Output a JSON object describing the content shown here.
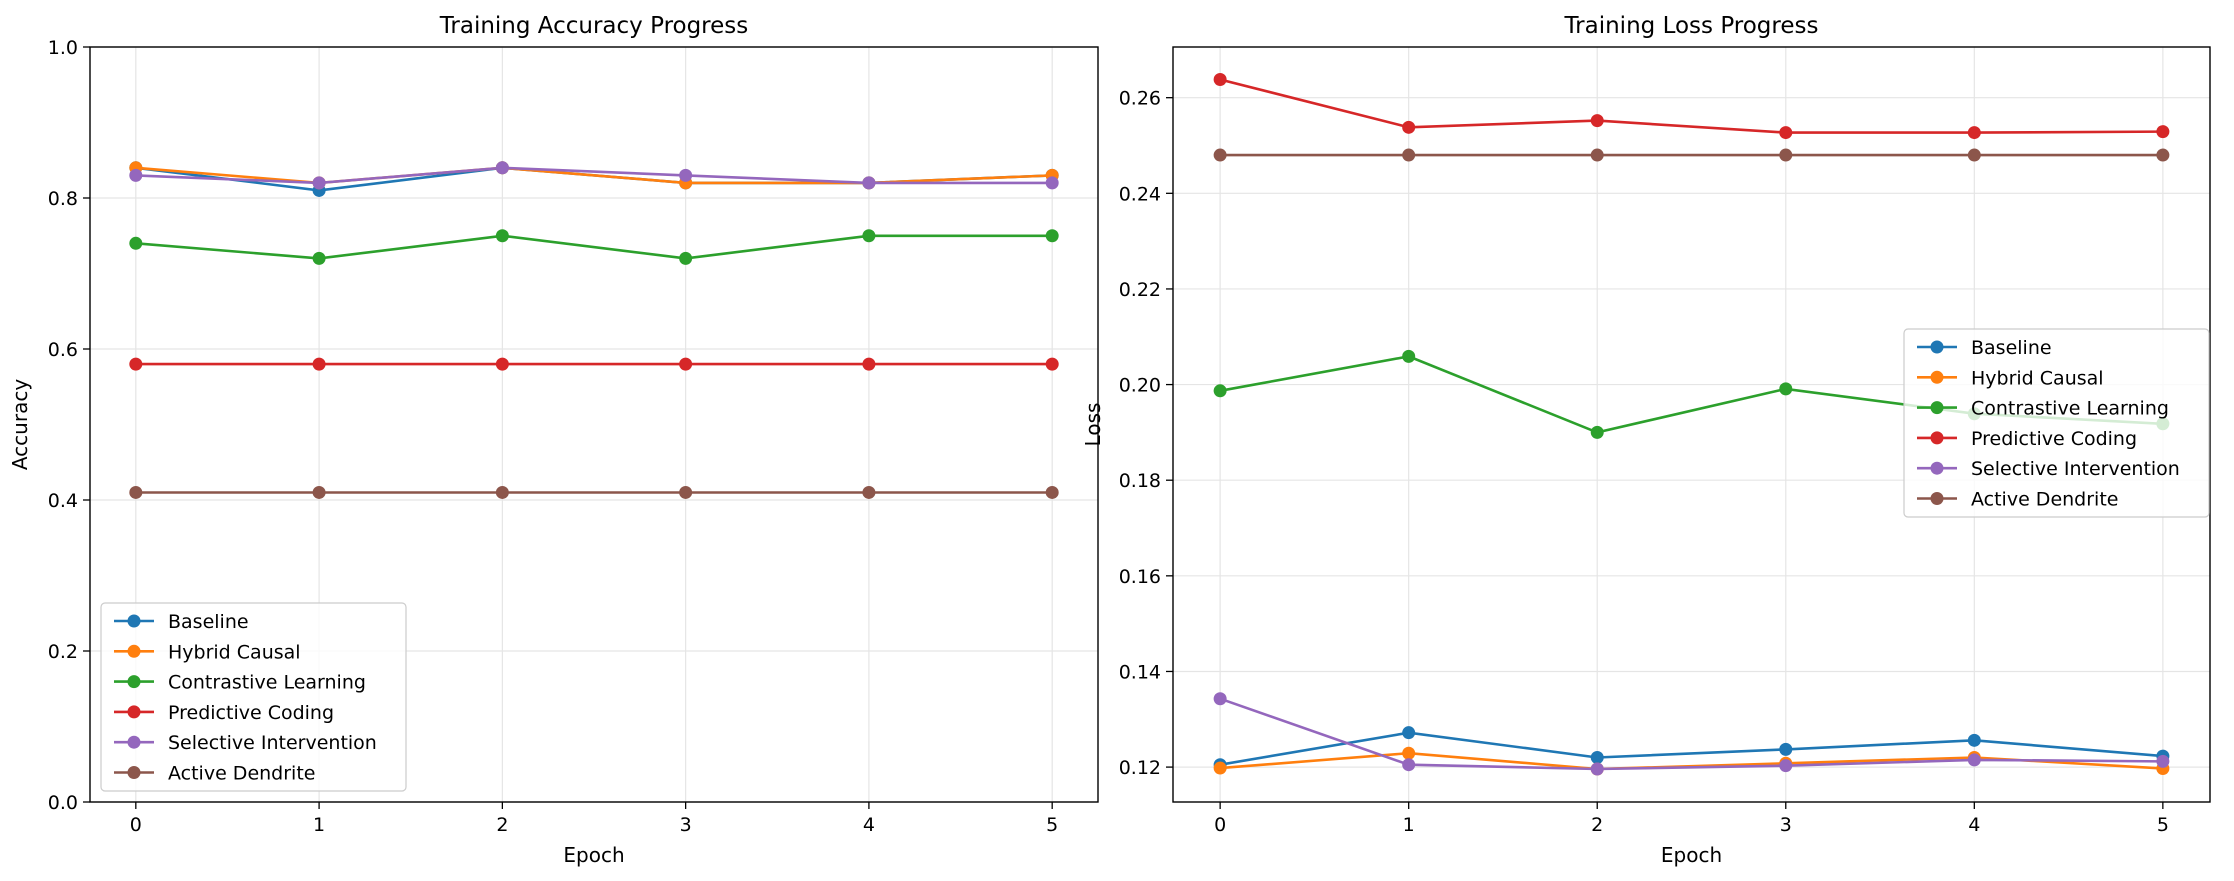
{
  "chart_data": [
    {
      "type": "line",
      "title": "Training Accuracy Progress",
      "xlabel": "Epoch",
      "ylabel": "Accuracy",
      "x": [
        0,
        1,
        2,
        3,
        4,
        5
      ],
      "xticks": [
        "0",
        "1",
        "2",
        "3",
        "4",
        "5"
      ],
      "xlim": [
        -0.25,
        5.25
      ],
      "ylim": [
        0,
        1.0
      ],
      "yticks": [
        "0.0",
        "0.2",
        "0.4",
        "0.6",
        "0.8",
        "1.0"
      ],
      "grid": true,
      "legend_position": "lower-left",
      "series": [
        {
          "name": "Baseline",
          "color": "#1f77b4",
          "values": [
            0.84,
            0.81,
            0.84,
            0.82,
            0.82,
            0.83
          ]
        },
        {
          "name": "Hybrid Causal",
          "color": "#ff7f0e",
          "values": [
            0.84,
            0.82,
            0.84,
            0.82,
            0.82,
            0.83
          ]
        },
        {
          "name": "Contrastive Learning",
          "color": "#2ca02c",
          "values": [
            0.74,
            0.72,
            0.75,
            0.72,
            0.75,
            0.75
          ]
        },
        {
          "name": "Predictive Coding",
          "color": "#d62728",
          "values": [
            0.58,
            0.58,
            0.58,
            0.58,
            0.58,
            0.58
          ]
        },
        {
          "name": "Selective Intervention",
          "color": "#9467bd",
          "values": [
            0.83,
            0.82,
            0.84,
            0.83,
            0.82,
            0.82
          ]
        },
        {
          "name": "Active Dendrite",
          "color": "#8c564b",
          "values": [
            0.41,
            0.41,
            0.41,
            0.41,
            0.41,
            0.41
          ]
        }
      ]
    },
    {
      "type": "line",
      "title": "Training Loss Progress",
      "xlabel": "Epoch",
      "ylabel": "Loss",
      "x": [
        0,
        1,
        2,
        3,
        4,
        5
      ],
      "xticks": [
        "0",
        "1",
        "2",
        "3",
        "4",
        "5"
      ],
      "xlim": [
        -0.25,
        5.25
      ],
      "ylim": [
        0.1127,
        0.2706
      ],
      "yticks": [
        "0.12",
        "0.14",
        "0.16",
        "0.18",
        "0.20",
        "0.22",
        "0.24",
        "0.26"
      ],
      "grid": true,
      "legend_position": "center-right",
      "series": [
        {
          "name": "Baseline",
          "color": "#1f77b4",
          "values": [
            0.1205,
            0.1272,
            0.122,
            0.1237,
            0.1256,
            0.1223
          ]
        },
        {
          "name": "Hybrid Causal",
          "color": "#ff7f0e",
          "values": [
            0.1198,
            0.1229,
            0.1196,
            0.1208,
            0.122,
            0.1197
          ]
        },
        {
          "name": "Contrastive Learning",
          "color": "#2ca02c",
          "values": [
            0.1987,
            0.2059,
            0.19,
            0.1991,
            0.1939,
            0.1918
          ]
        },
        {
          "name": "Predictive Coding",
          "color": "#d62728",
          "values": [
            0.2638,
            0.2538,
            0.2552,
            0.2527,
            0.2527,
            0.2529
          ]
        },
        {
          "name": "Selective Intervention",
          "color": "#9467bd",
          "values": [
            0.1343,
            0.1205,
            0.1196,
            0.1203,
            0.1215,
            0.1212
          ]
        },
        {
          "name": "Active Dendrite",
          "color": "#8c564b",
          "values": [
            0.248,
            0.248,
            0.248,
            0.248,
            0.248,
            0.248
          ]
        }
      ]
    }
  ]
}
